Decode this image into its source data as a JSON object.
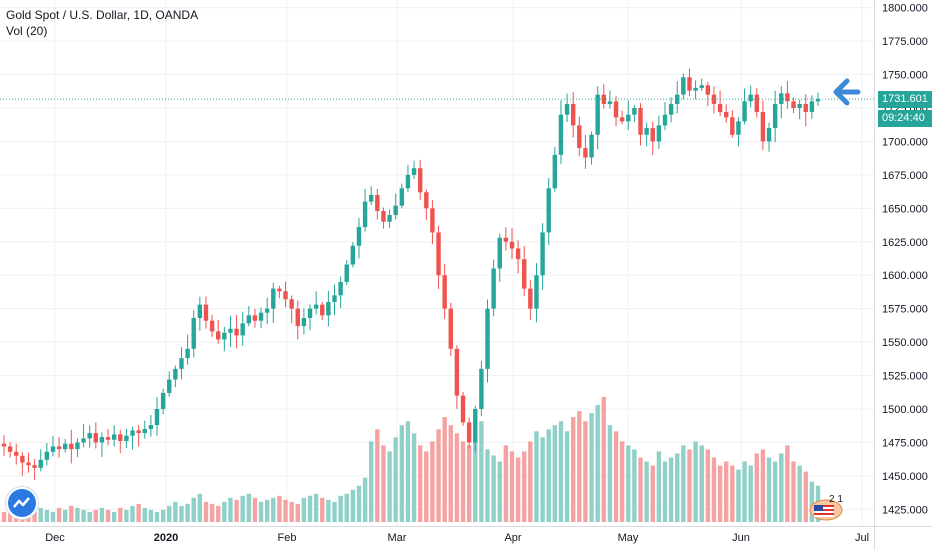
{
  "legend": {
    "title": "Gold Spot / U.S. Dollar, 1D, OANDA",
    "volume": "Vol (20)"
  },
  "price_tag": "1731.601",
  "timer_tag": "09:24:40",
  "badge_number": "2 1",
  "colors": {
    "up": "#26a69a",
    "down": "#ef5350",
    "vol_up": "#8fd0c8",
    "vol_down": "#f4a3a2",
    "arrow": "#3c8ad8"
  },
  "chart_data": {
    "type": "candlestick",
    "title": "Gold Spot / U.S. Dollar, 1D, OANDA",
    "y_ticks": [
      "1800.000",
      "1775.000",
      "1750.000",
      "1725.000",
      "1700.000",
      "1675.000",
      "1650.000",
      "1625.000",
      "1600.000",
      "1575.000",
      "1550.000",
      "1525.000",
      "1500.000",
      "1475.000",
      "1450.000",
      "1425.000"
    ],
    "y_range": [
      1420,
      1802
    ],
    "x_labels": [
      "Dec",
      "2020",
      "Feb",
      "Mar",
      "Apr",
      "May",
      "Jun",
      "Jul"
    ],
    "last_price": 1731.601,
    "close_path": [
      1472,
      1468,
      1465,
      1460,
      1458,
      1456,
      1462,
      1468,
      1472,
      1470,
      1474,
      1470,
      1475,
      1478,
      1482,
      1475,
      1479,
      1477,
      1481,
      1476,
      1480,
      1484,
      1482,
      1485,
      1488,
      1500,
      1512,
      1522,
      1530,
      1538,
      1545,
      1568,
      1578,
      1566,
      1558,
      1552,
      1557,
      1560,
      1555,
      1564,
      1570,
      1566,
      1572,
      1575,
      1590,
      1588,
      1582,
      1575,
      1562,
      1568,
      1575,
      1578,
      1570,
      1580,
      1585,
      1595,
      1608,
      1622,
      1636,
      1655,
      1660,
      1648,
      1640,
      1645,
      1652,
      1665,
      1675,
      1680,
      1662,
      1650,
      1632,
      1600,
      1575,
      1545,
      1510,
      1490,
      1475,
      1500,
      1530,
      1575,
      1605,
      1628,
      1625,
      1620,
      1612,
      1590,
      1575,
      1600,
      1632,
      1665,
      1690,
      1720,
      1728,
      1712,
      1695,
      1688,
      1705,
      1735,
      1728,
      1730,
      1718,
      1715,
      1720,
      1725,
      1705,
      1710,
      1700,
      1712,
      1720,
      1728,
      1735,
      1748,
      1738,
      1740,
      1742,
      1735,
      1728,
      1722,
      1718,
      1705,
      1715,
      1730,
      1735,
      1722,
      1700,
      1710,
      1728,
      1736,
      1730,
      1725,
      1728,
      1722,
      1730,
      1731.6
    ],
    "volume_path": [
      5,
      6,
      5,
      7,
      6,
      8,
      7,
      6,
      5,
      7,
      6,
      8,
      7,
      6,
      5,
      6,
      7,
      6,
      5,
      7,
      6,
      8,
      9,
      7,
      6,
      5,
      6,
      8,
      10,
      8,
      9,
      12,
      14,
      10,
      9,
      8,
      10,
      12,
      11,
      13,
      14,
      12,
      10,
      11,
      12,
      13,
      11,
      10,
      9,
      12,
      13,
      14,
      12,
      11,
      10,
      13,
      14,
      16,
      18,
      22,
      40,
      46,
      38,
      35,
      42,
      48,
      50,
      44,
      38,
      35,
      40,
      46,
      52,
      48,
      44,
      40,
      38,
      42,
      50,
      36,
      33,
      30,
      38,
      35,
      32,
      35,
      40,
      45,
      42,
      46,
      48,
      50,
      45,
      52,
      55,
      50,
      54,
      58,
      62,
      48,
      45,
      40,
      38,
      36,
      32,
      30,
      28,
      35,
      30,
      32,
      34,
      38,
      36,
      40,
      38,
      36,
      32,
      28,
      30,
      28,
      26,
      30,
      28,
      34,
      36,
      32,
      30,
      34,
      38,
      30,
      28,
      25,
      20,
      18
    ]
  }
}
